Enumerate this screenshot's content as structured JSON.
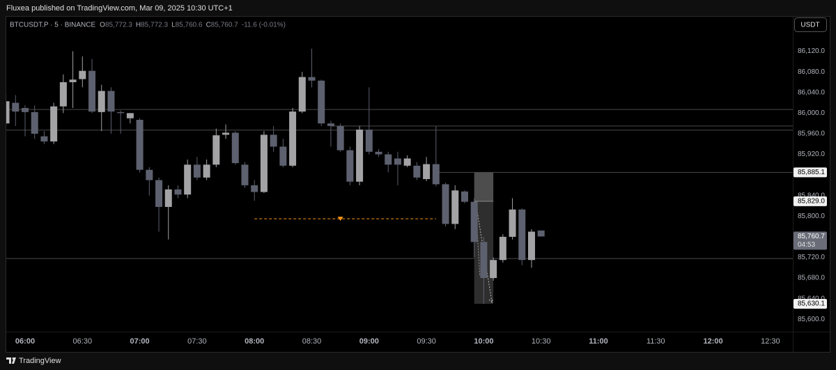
{
  "header": {
    "published": "Fluxea published on TradingView.com, Mar 09, 2025 10:30 UTC+1",
    "footer": "TradingView"
  },
  "chart_data": {
    "type": "candlestick",
    "symbol": "BTCUSDT.P · 5 · BINANCE",
    "ohlc_legend": [
      {
        "key": "O",
        "value": "85,772.3"
      },
      {
        "key": "H",
        "value": "85,772.3"
      },
      {
        "key": "L",
        "value": "85,760.6"
      },
      {
        "key": "C",
        "value": "85,760.7"
      }
    ],
    "change": "-11.6 (-0.01%)",
    "currency": "USDT",
    "up_color": "#a3a3a6",
    "down_color": "#5d606e",
    "x": [
      "05:50",
      "05:55",
      "06:00",
      "06:05",
      "06:10",
      "06:15",
      "06:20",
      "06:25",
      "06:30",
      "06:35",
      "06:40",
      "06:45",
      "06:50",
      "06:55",
      "07:00",
      "07:05",
      "07:10",
      "07:15",
      "07:20",
      "07:25",
      "07:30",
      "07:35",
      "07:40",
      "07:45",
      "07:50",
      "07:55",
      "08:00",
      "08:05",
      "08:10",
      "08:15",
      "08:20",
      "08:25",
      "08:30",
      "08:35",
      "08:40",
      "08:45",
      "08:50",
      "08:55",
      "09:00",
      "09:05",
      "09:10",
      "09:15",
      "09:20",
      "09:25",
      "09:30",
      "09:35",
      "09:40",
      "09:45",
      "09:50",
      "09:55",
      "10:00",
      "10:05",
      "10:10",
      "10:15",
      "10:20",
      "10:25",
      "10:30"
    ],
    "open": [
      85980,
      86020,
      86010,
      86002,
      85955,
      85945,
      86013,
      86060,
      86066,
      86082,
      86002,
      86043,
      86002,
      85990,
      85987,
      85890,
      85870,
      85818,
      85852,
      85842,
      85900,
      85875,
      85900,
      85958,
      85962,
      85900,
      85860,
      85847,
      85958,
      85935,
      85898,
      86003,
      86070,
      86063,
      85980,
      85975,
      85928,
      85867,
      85968,
      85925,
      85920,
      85912,
      85898,
      85898,
      85872,
      85901,
      85862,
      85785,
      85848,
      85828,
      85750,
      85680,
      85715,
      85760,
      85813,
      85715,
      85772.3
    ],
    "high": [
      86037,
      86035,
      86015,
      86015,
      85965,
      86020,
      86075,
      86120,
      86110,
      86105,
      86055,
      86050,
      86005,
      86000,
      85990,
      85895,
      85875,
      85860,
      85860,
      85910,
      85915,
      85910,
      85970,
      85978,
      85965,
      85905,
      85870,
      85965,
      85975,
      85950,
      86010,
      86080,
      86125,
      86065,
      85985,
      85980,
      85935,
      85975,
      86050,
      85930,
      85925,
      85925,
      85918,
      85905,
      85915,
      85975,
      85865,
      85860,
      85850,
      85835,
      85760,
      85720,
      85765,
      85835,
      85815,
      85775,
      85772.3
    ],
    "low": [
      85976,
      85975,
      85955,
      85950,
      85940,
      85940,
      86000,
      86010,
      86050,
      86000,
      85965,
      85960,
      85960,
      85980,
      85885,
      85840,
      85770,
      85755,
      85835,
      85835,
      85870,
      85870,
      85895,
      85950,
      85900,
      85855,
      85830,
      85845,
      85925,
      85895,
      85895,
      86000,
      86050,
      85975,
      85935,
      85925,
      85860,
      85860,
      85920,
      85915,
      85885,
      85860,
      85895,
      85870,
      85868,
      85858,
      85780,
      85775,
      85825,
      85720,
      85630,
      85675,
      85710,
      85755,
      85705,
      85700,
      85760.6
    ],
    "close": [
      86023,
      86003,
      86002,
      85960,
      85945,
      86013,
      86060,
      86065,
      86082,
      86003,
      86043,
      86003,
      86000,
      86000,
      85890,
      85870,
      85818,
      85852,
      85842,
      85900,
      85875,
      85900,
      85957,
      85962,
      85903,
      85860,
      85847,
      85958,
      85935,
      85898,
      86003,
      86070,
      86063,
      85980,
      85975,
      85928,
      85867,
      85968,
      85925,
      85920,
      85900,
      85900,
      85912,
      85875,
      85901,
      85862,
      85785,
      85850,
      85828,
      85750,
      85680,
      85715,
      85760,
      85813,
      85715,
      85770,
      85760.7
    ],
    "ylim": [
      85576,
      86187
    ],
    "yticks": [
      {
        "value": 85600,
        "label": "85,600.0"
      },
      {
        "value": 85640,
        "label": "85,640.0"
      },
      {
        "value": 85680,
        "label": "85,680.0"
      },
      {
        "value": 85720,
        "label": "85,720.0"
      },
      {
        "value": 85800,
        "label": "85,800.0"
      },
      {
        "value": 85840,
        "label": "85,840.0"
      },
      {
        "value": 85920,
        "label": "85,920.0"
      },
      {
        "value": 85960,
        "label": "85,960.0"
      },
      {
        "value": 86000,
        "label": "86,000.0"
      },
      {
        "value": 86040,
        "label": "86,040.0"
      },
      {
        "value": 86080,
        "label": "86,080.0"
      },
      {
        "value": 86120,
        "label": "86,120.0"
      }
    ],
    "xticks": [
      "06:00",
      "06:30",
      "07:00",
      "07:30",
      "08:00",
      "08:30",
      "09:00",
      "09:30",
      "10:00",
      "10:30",
      "11:00",
      "11:30",
      "12:00",
      "12:30"
    ],
    "levels": [
      {
        "value": 86007,
        "from": "05:50"
      },
      {
        "value": 85975,
        "from": "08:40"
      },
      {
        "value": 85967,
        "from": "05:50"
      },
      {
        "value": 85885.1,
        "from": "09:35"
      },
      {
        "value": 85718,
        "from": "05:50"
      }
    ],
    "alert": {
      "value": 85795,
      "from": "08:00",
      "to": "09:35",
      "marker": "08:45",
      "color": "#f7931a"
    },
    "position": {
      "from": "09:55",
      "to": "10:05",
      "stop": {
        "value": 85885.1,
        "label": "85,885.1"
      },
      "entry": {
        "value": 85829.0,
        "label": "85,829.0"
      },
      "target": {
        "value": 85630.1,
        "label": "85,630.1"
      }
    },
    "last_price": {
      "value": 85760.7,
      "label": "85,760.7",
      "countdown": "04:53"
    }
  }
}
